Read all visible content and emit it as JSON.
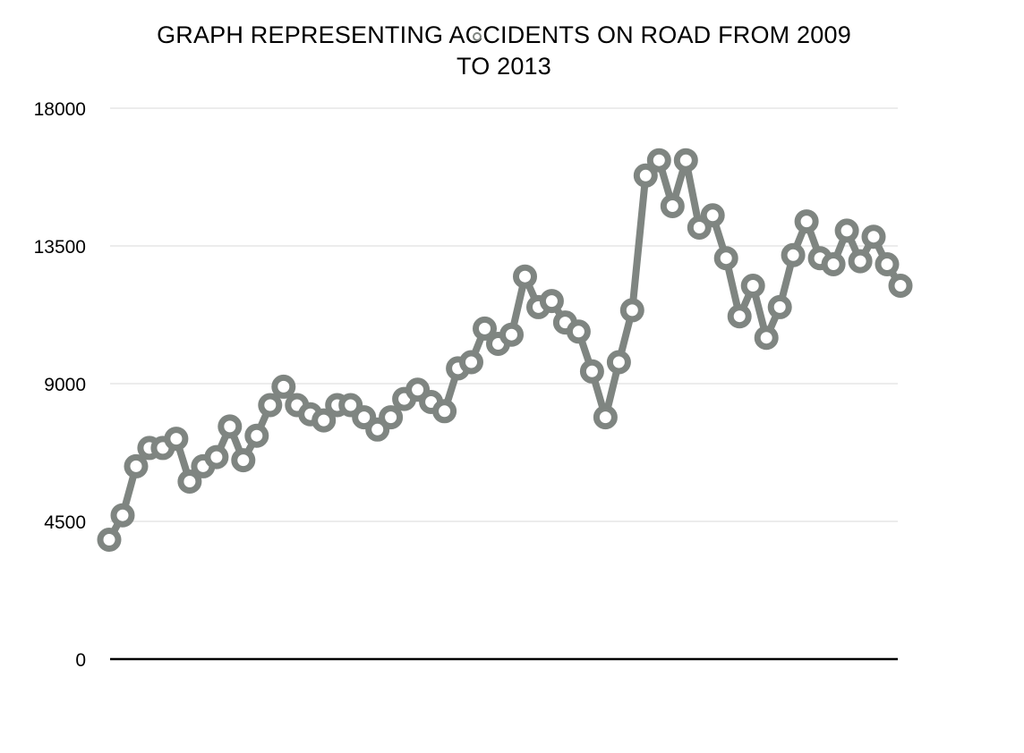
{
  "chart_data": {
    "type": "line",
    "title_lines": [
      "GRAPH REPRESENTING ACCIDENTS ON ROAD FROM 2009",
      "TO 2013"
    ],
    "xlabel": "",
    "ylabel": "",
    "ylim": [
      0,
      18000
    ],
    "yticks": [
      0,
      4500,
      9000,
      13500,
      18000
    ],
    "ytick_labels": [
      "0",
      "4500",
      "9000",
      "13500",
      "18000"
    ],
    "grid": true,
    "legend": "top-center",
    "series_color": "#7f8581",
    "series": [
      {
        "values": [
          3900,
          4700,
          6300,
          6900,
          6900,
          7200,
          5800,
          6300,
          6600,
          7600,
          6500,
          7300,
          8300,
          8900,
          8300,
          8000,
          7800,
          8300,
          8300,
          7900,
          7500,
          7900,
          8500,
          8800,
          8400,
          8100,
          9500,
          9700,
          10800,
          10300,
          10600,
          12500,
          11500,
          11700,
          11000,
          10700,
          9400,
          7900,
          9700,
          11400,
          15800,
          16300,
          14800,
          16300,
          14100,
          14500,
          13100,
          11200,
          12200,
          10500,
          11500,
          13200,
          14300,
          13100,
          12900,
          14000,
          13000,
          13800,
          12900,
          12200
        ]
      }
    ]
  }
}
